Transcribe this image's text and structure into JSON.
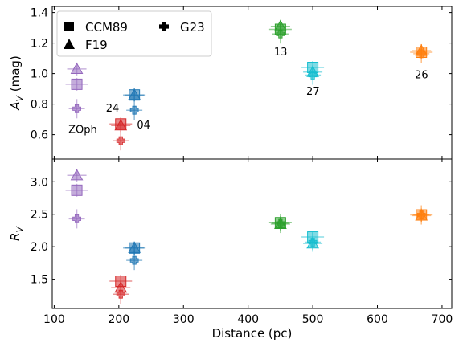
{
  "chart_data": {
    "type": "scatter",
    "xlabel": "Distance (pc)",
    "xlim": [
      97,
      715
    ],
    "x_ticks": [
      100,
      200,
      300,
      400,
      500,
      600,
      700
    ],
    "legend": {
      "placement": "top-left",
      "entries": [
        {
          "label": "CCM89",
          "marker": "square"
        },
        {
          "label": "F19",
          "marker": "triangle"
        },
        {
          "label": "G23",
          "marker": "plus"
        }
      ]
    },
    "colors": {
      "ZOph": "#9467bd",
      "24": "#d62728",
      "04": "#1f77b4",
      "13": "#2ca02c",
      "27": "#17becf",
      "26": "#ff7f0e"
    },
    "panels": [
      {
        "ylabel": "A_V (mag)",
        "ylim": [
          0.44,
          1.44
        ],
        "y_ticks": [
          0.6,
          0.8,
          1.0,
          1.2,
          1.4
        ],
        "y_tick_labels": [
          "0.6",
          "0.8",
          "1.0",
          "1.2",
          "1.4"
        ],
        "points": [
          {
            "cloud": "ZOph",
            "x": 135,
            "CCM89": 0.93,
            "F19": 1.03,
            "G23": 0.77
          },
          {
            "cloud": "24",
            "x": 203,
            "CCM89": 0.67,
            "F19": 0.66,
            "G23": 0.56
          },
          {
            "cloud": "04",
            "x": 224,
            "CCM89": 0.86,
            "F19": 0.86,
            "G23": 0.76
          },
          {
            "cloud": "13",
            "x": 450,
            "CCM89": 1.29,
            "F19": 1.31,
            "G23": 1.26
          },
          {
            "cloud": "27",
            "x": 500,
            "CCM89": 1.04,
            "F19": 1.01,
            "G23": 0.99
          },
          {
            "cloud": "26",
            "x": 668,
            "CCM89": 1.14,
            "F19": 1.15,
            "G23": 1.13
          }
        ],
        "annotations": [
          {
            "text": "ZOph",
            "x": 122,
            "y": 0.61
          },
          {
            "text": "24",
            "x": 180,
            "y": 0.75
          },
          {
            "text": "04",
            "x": 228,
            "y": 0.64
          },
          {
            "text": "13",
            "x": 440,
            "y": 1.12
          },
          {
            "text": "27",
            "x": 490,
            "y": 0.86
          },
          {
            "text": "26",
            "x": 658,
            "y": 0.97
          }
        ]
      },
      {
        "ylabel": "R_V",
        "ylim": [
          1.05,
          3.35
        ],
        "y_ticks": [
          1.5,
          2.0,
          2.5,
          3.0
        ],
        "y_tick_labels": [
          "1.5",
          "2.0",
          "2.5",
          "3.0"
        ],
        "points": [
          {
            "cloud": "ZOph",
            "x": 135,
            "CCM89": 2.87,
            "F19": 3.1,
            "G23": 2.43
          },
          {
            "cloud": "24",
            "x": 203,
            "CCM89": 1.47,
            "F19": 1.37,
            "G23": 1.27
          },
          {
            "cloud": "04",
            "x": 224,
            "CCM89": 1.98,
            "F19": 1.98,
            "G23": 1.79
          },
          {
            "cloud": "13",
            "x": 450,
            "CCM89": 2.37,
            "F19": 2.35,
            "G23": 2.36
          },
          {
            "cloud": "27",
            "x": 500,
            "CCM89": 2.15,
            "F19": 2.05,
            "G23": 2.07
          },
          {
            "cloud": "26",
            "x": 668,
            "CCM89": 2.49,
            "F19": 2.48,
            "G23": 2.49
          }
        ]
      }
    ]
  }
}
